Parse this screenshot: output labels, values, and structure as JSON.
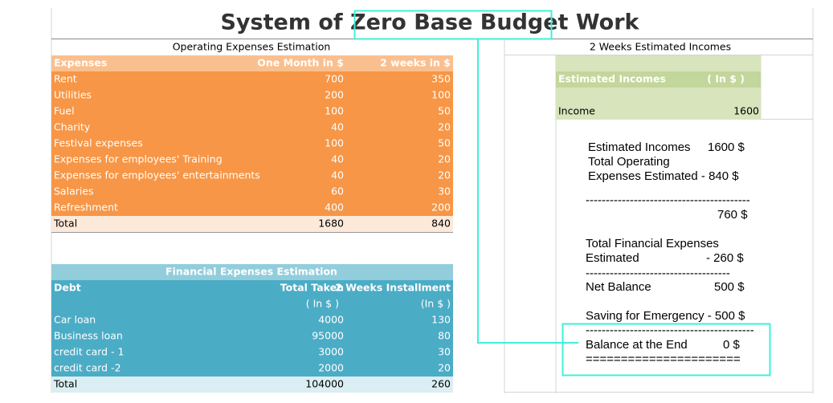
{
  "title": "System of Zero Base Budget Work",
  "operating": {
    "heading": "Operating Expenses Estimation",
    "columns": [
      "Expenses",
      "One Month in $",
      "2 weeks in $"
    ],
    "rows": [
      [
        "Rent",
        "700",
        "350"
      ],
      [
        "Utilities",
        "200",
        "100"
      ],
      [
        "Fuel",
        "100",
        "50"
      ],
      [
        "Charity",
        "40",
        "20"
      ],
      [
        "Festival expenses",
        "100",
        "50"
      ],
      [
        "Expenses for employees' Training",
        "40",
        "20"
      ],
      [
        "Expenses for employees' entertainments",
        "40",
        "20"
      ],
      [
        "Salaries",
        "60",
        "30"
      ],
      [
        "Refreshment",
        "400",
        "200"
      ]
    ],
    "total": [
      "Total",
      "1680",
      "840"
    ]
  },
  "financial": {
    "heading": "Financial Expenses Estimation",
    "columns": [
      "Debt",
      "Total Taken",
      "2 Weeks Installment"
    ],
    "units": [
      "( In $ )",
      "(In $ )"
    ],
    "rows": [
      [
        "Car loan",
        "4000",
        "130"
      ],
      [
        "Business loan",
        "95000",
        "80"
      ],
      [
        "credit card - 1",
        "3000",
        "30"
      ],
      [
        "credit card -2",
        "2000",
        "20"
      ]
    ],
    "total": [
      "Total",
      "104000",
      "260"
    ]
  },
  "incomes": {
    "heading": "2 Weeks Estimated Incomes",
    "columns": [
      "Estimated Incomes",
      "( In $ )"
    ],
    "row": [
      "Income",
      "1600"
    ]
  },
  "summary": [
    "Estimated Incomes",
    "1600 $",
    "Total Operating",
    "Expenses Estimated - 840 $",
    "-----------------------------------------",
    "760 $",
    "Total Financial Expenses",
    "Estimated",
    "- 260 $",
    "------------------------------------",
    "Net Balance",
    "500 $",
    "Saving for Emergency - 500 $",
    "------------------------------------------",
    "Balance at the End",
    "0 $",
    "======================"
  ]
}
